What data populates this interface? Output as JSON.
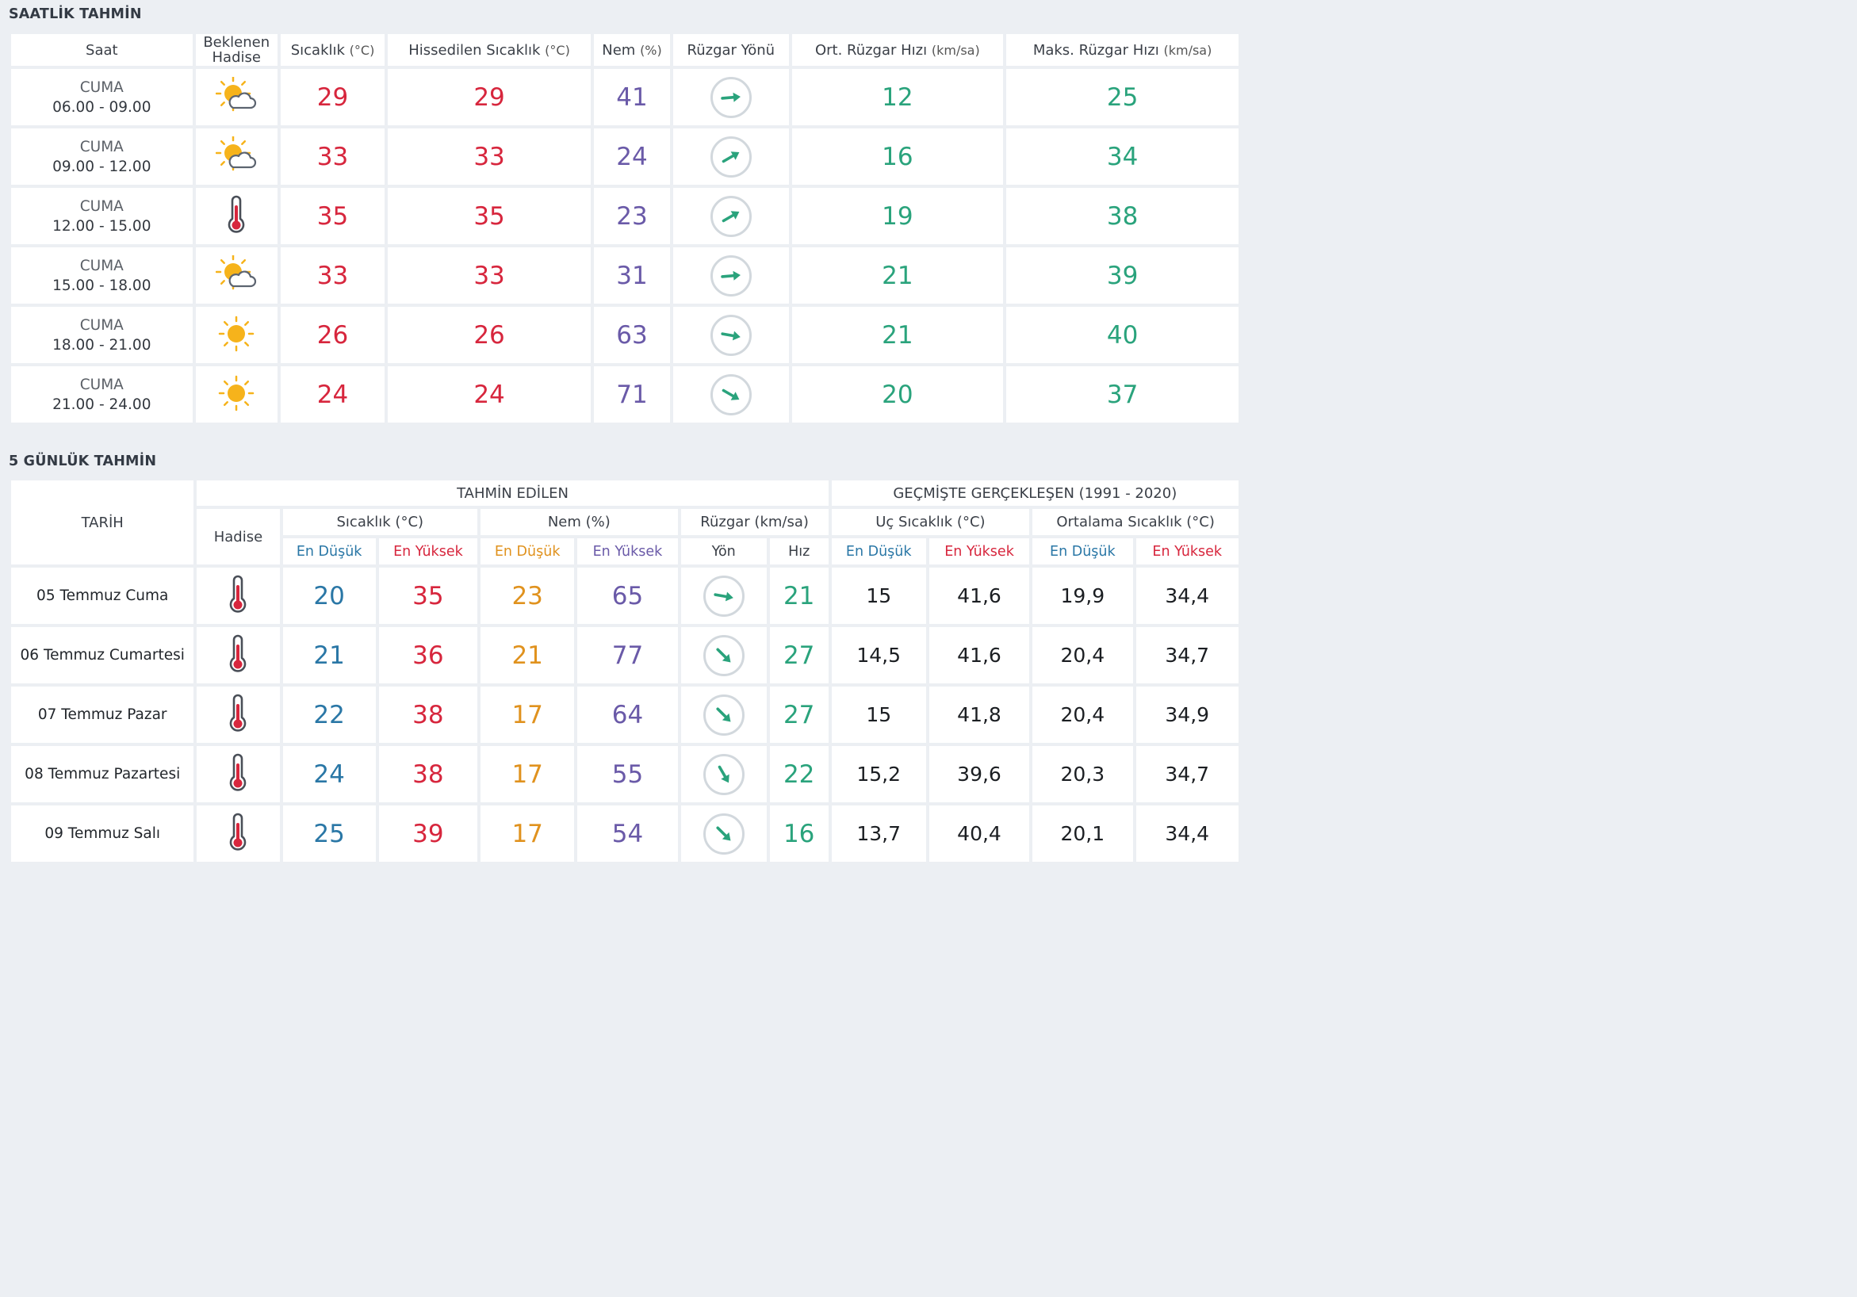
{
  "colors": {
    "temp": "#d7263d",
    "humidity": "#6a5aa8",
    "wind": "#2aa37c",
    "low": "#2a77a6",
    "humidity_low": "#e0921e",
    "arrow": "#2aa37c",
    "circle": "#d2d8dd",
    "sun": "#f6b31b",
    "cloud": "#5c6470"
  },
  "hourly": {
    "title": "SAATLİK TAHMİN",
    "headers": {
      "time": "Saat",
      "event": "Beklenen Hadise",
      "temp": "Sıcaklık",
      "temp_unit": "(°C)",
      "feels": "Hissedilen Sıcaklık",
      "feels_unit": "(°C)",
      "humidity": "Nem",
      "humidity_unit": "(%)",
      "wind_dir": "Rüzgar Yönü",
      "wind_avg": "Ort. Rüzgar Hızı",
      "wind_avg_unit": "(km/sa)",
      "wind_max": "Maks. Rüzgar Hızı",
      "wind_max_unit": "(km/sa)"
    },
    "rows": [
      {
        "day": "CUMA",
        "time": "06.00 - 09.00",
        "icon": "partly-cloudy-icon",
        "temp": "29",
        "feels": "29",
        "humidity": "41",
        "wind_dir_deg": 85,
        "wind_avg": "12",
        "wind_max": "25"
      },
      {
        "day": "CUMA",
        "time": "09.00 - 12.00",
        "icon": "partly-cloudy-icon",
        "temp": "33",
        "feels": "33",
        "humidity": "24",
        "wind_dir_deg": 60,
        "wind_avg": "16",
        "wind_max": "34"
      },
      {
        "day": "CUMA",
        "time": "12.00 - 15.00",
        "icon": "thermometer-icon",
        "temp": "35",
        "feels": "35",
        "humidity": "23",
        "wind_dir_deg": 60,
        "wind_avg": "19",
        "wind_max": "38"
      },
      {
        "day": "CUMA",
        "time": "15.00 - 18.00",
        "icon": "partly-cloudy-icon",
        "temp": "33",
        "feels": "33",
        "humidity": "31",
        "wind_dir_deg": 85,
        "wind_avg": "21",
        "wind_max": "39"
      },
      {
        "day": "CUMA",
        "time": "18.00 - 21.00",
        "icon": "sun-icon",
        "temp": "26",
        "feels": "26",
        "humidity": "63",
        "wind_dir_deg": 100,
        "wind_avg": "21",
        "wind_max": "40"
      },
      {
        "day": "CUMA",
        "time": "21.00 - 24.00",
        "icon": "sun-icon",
        "temp": "24",
        "feels": "24",
        "humidity": "71",
        "wind_dir_deg": 120,
        "wind_avg": "20",
        "wind_max": "37"
      }
    ]
  },
  "daily": {
    "title": "5 GÜNLÜK TAHMİN",
    "headers": {
      "date": "TARİH",
      "forecast_group": "TAHMİN EDİLEN",
      "past_group": "GEÇMİŞTE GERÇEKLEŞEN (1991 - 2020)",
      "event": "Hadise",
      "temp": "Sıcaklık (°C)",
      "humidity": "Nem (%)",
      "wind": "Rüzgar (km/sa)",
      "extreme": "Uç Sıcaklık (°C)",
      "average": "Ortalama Sıcaklık (°C)",
      "low": "En Düşük",
      "high": "En Yüksek",
      "dir": "Yön",
      "speed": "Hız"
    },
    "rows": [
      {
        "date": "05 Temmuz Cuma",
        "icon": "thermometer-icon",
        "temp_low": "20",
        "temp_high": "35",
        "hum_low": "23",
        "hum_high": "65",
        "wind_dir_deg": 100,
        "wind_speed": "21",
        "ext_low": "15",
        "ext_high": "41,6",
        "avg_low": "19,9",
        "avg_high": "34,4"
      },
      {
        "date": "06 Temmuz Cumartesi",
        "icon": "thermometer-icon",
        "temp_low": "21",
        "temp_high": "36",
        "hum_low": "21",
        "hum_high": "77",
        "wind_dir_deg": 135,
        "wind_speed": "27",
        "ext_low": "14,5",
        "ext_high": "41,6",
        "avg_low": "20,4",
        "avg_high": "34,7"
      },
      {
        "date": "07 Temmuz Pazar",
        "icon": "thermometer-icon",
        "temp_low": "22",
        "temp_high": "38",
        "hum_low": "17",
        "hum_high": "64",
        "wind_dir_deg": 135,
        "wind_speed": "27",
        "ext_low": "15",
        "ext_high": "41,8",
        "avg_low": "20,4",
        "avg_high": "34,9"
      },
      {
        "date": "08 Temmuz Pazartesi",
        "icon": "thermometer-icon",
        "temp_low": "24",
        "temp_high": "38",
        "hum_low": "17",
        "hum_high": "55",
        "wind_dir_deg": 150,
        "wind_speed": "22",
        "ext_low": "15,2",
        "ext_high": "39,6",
        "avg_low": "20,3",
        "avg_high": "34,7"
      },
      {
        "date": "09 Temmuz Salı",
        "icon": "thermometer-icon",
        "temp_low": "25",
        "temp_high": "39",
        "hum_low": "17",
        "hum_high": "54",
        "wind_dir_deg": 135,
        "wind_speed": "16",
        "ext_low": "13,7",
        "ext_high": "40,4",
        "avg_low": "20,1",
        "avg_high": "34,4"
      }
    ]
  }
}
